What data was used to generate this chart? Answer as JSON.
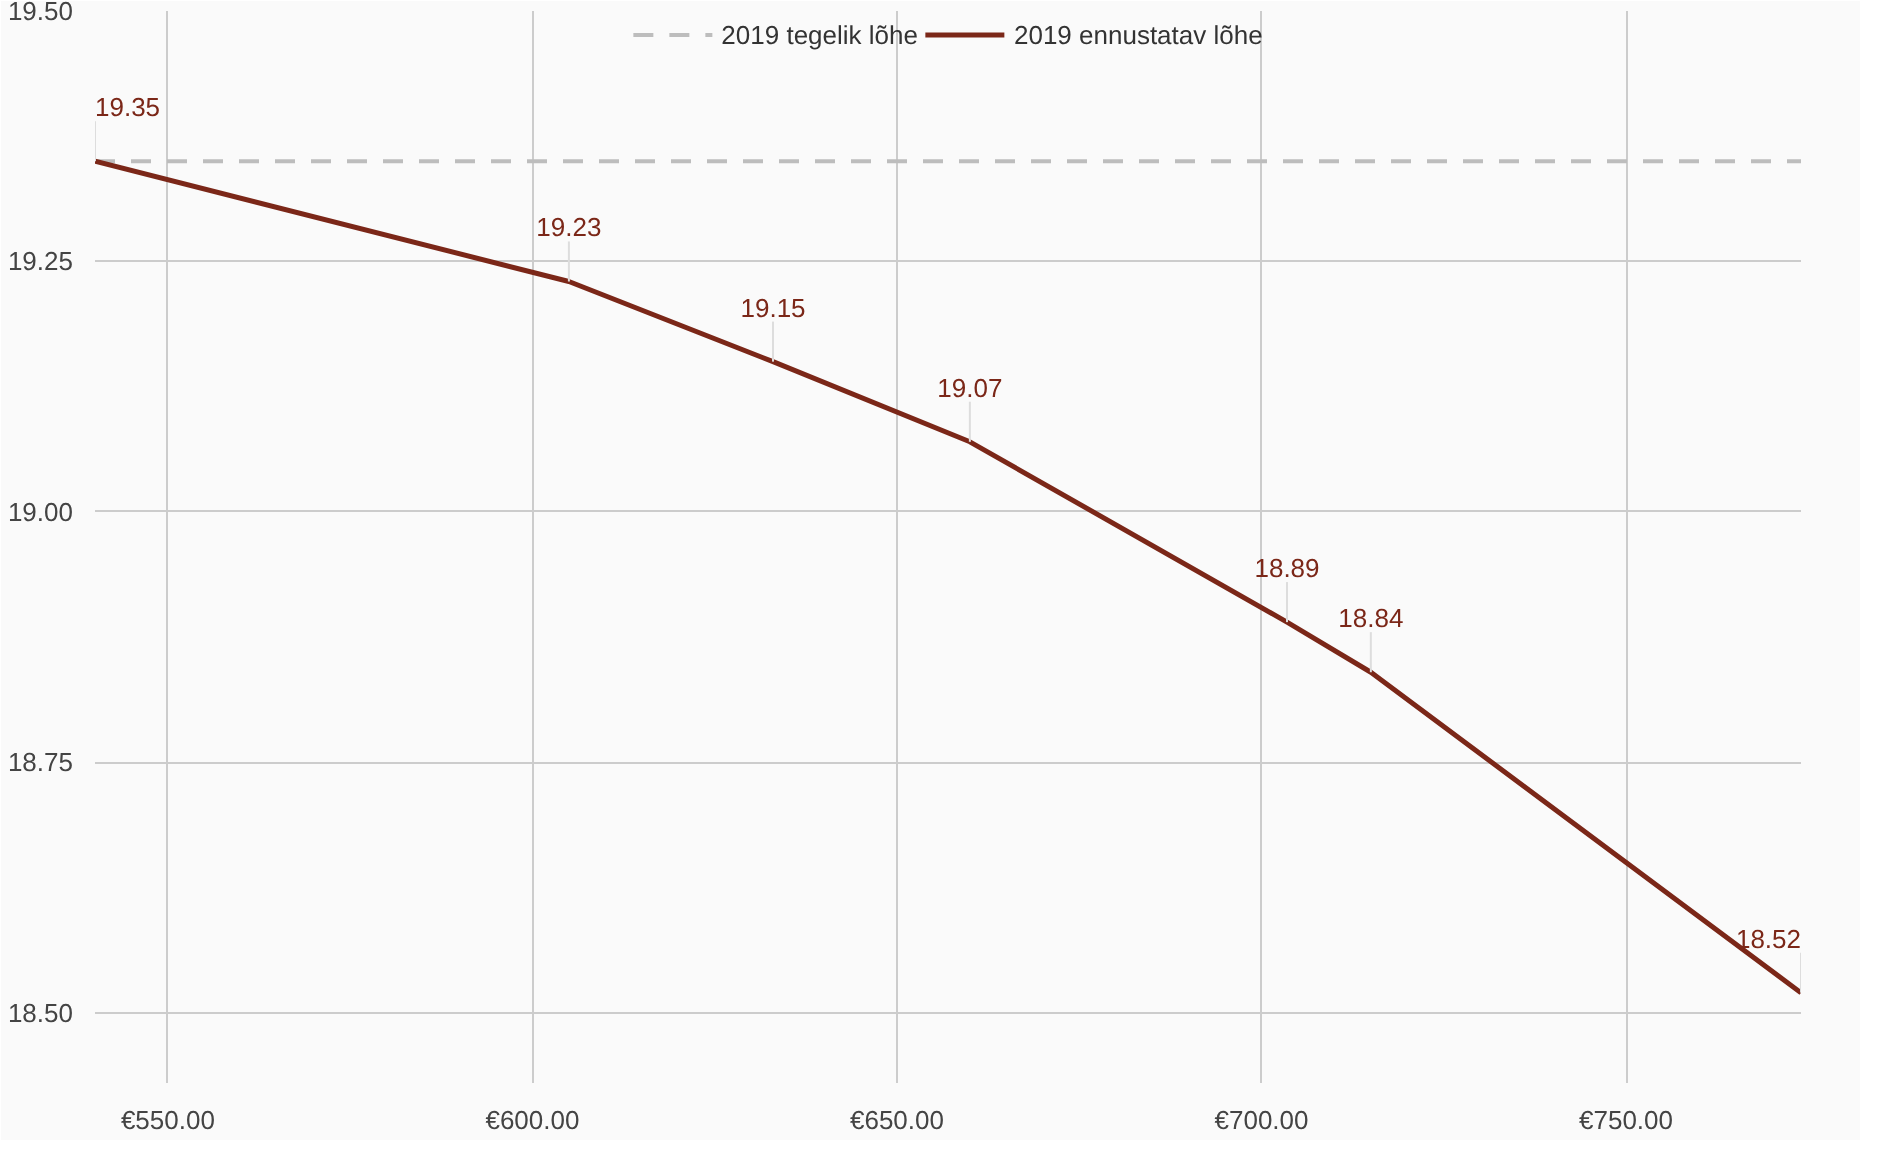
{
  "chart_data": {
    "type": "line",
    "xlim": [
      540,
      774
    ],
    "ylim": [
      18.43,
      19.5
    ],
    "xticks": [
      {
        "value": 550,
        "label": "€550.00"
      },
      {
        "value": 600,
        "label": "€600.00"
      },
      {
        "value": 650,
        "label": "€650.00"
      },
      {
        "value": 700,
        "label": "€700.00"
      },
      {
        "value": 750,
        "label": "€750.00"
      }
    ],
    "yticks": [
      {
        "value": 18.5,
        "label": "18.50"
      },
      {
        "value": 18.75,
        "label": "18.75"
      },
      {
        "value": 19.0,
        "label": "19.00"
      },
      {
        "value": 19.25,
        "label": "19.25"
      },
      {
        "value": 19.5,
        "label": "19.50"
      }
    ],
    "grid": true,
    "legend": "top",
    "marker": "none",
    "series": [
      {
        "name": "2019 tegelik lõhe",
        "color": "#bdbdbd",
        "line_style": "dashed",
        "x": [
          540,
          774
        ],
        "values": [
          19.35,
          19.35
        ]
      },
      {
        "name": "2019 ennustatav lõhe",
        "color": "#7b2718",
        "line_style": "solid",
        "x": [
          540,
          605,
          633,
          660,
          703.5,
          715,
          774
        ],
        "values": [
          19.35,
          19.23,
          19.15,
          19.07,
          18.89,
          18.84,
          18.52
        ],
        "value_labels": [
          "19.35",
          "19.23",
          "19.15",
          "19.07",
          "18.89",
          "18.84",
          "18.52"
        ]
      }
    ]
  }
}
